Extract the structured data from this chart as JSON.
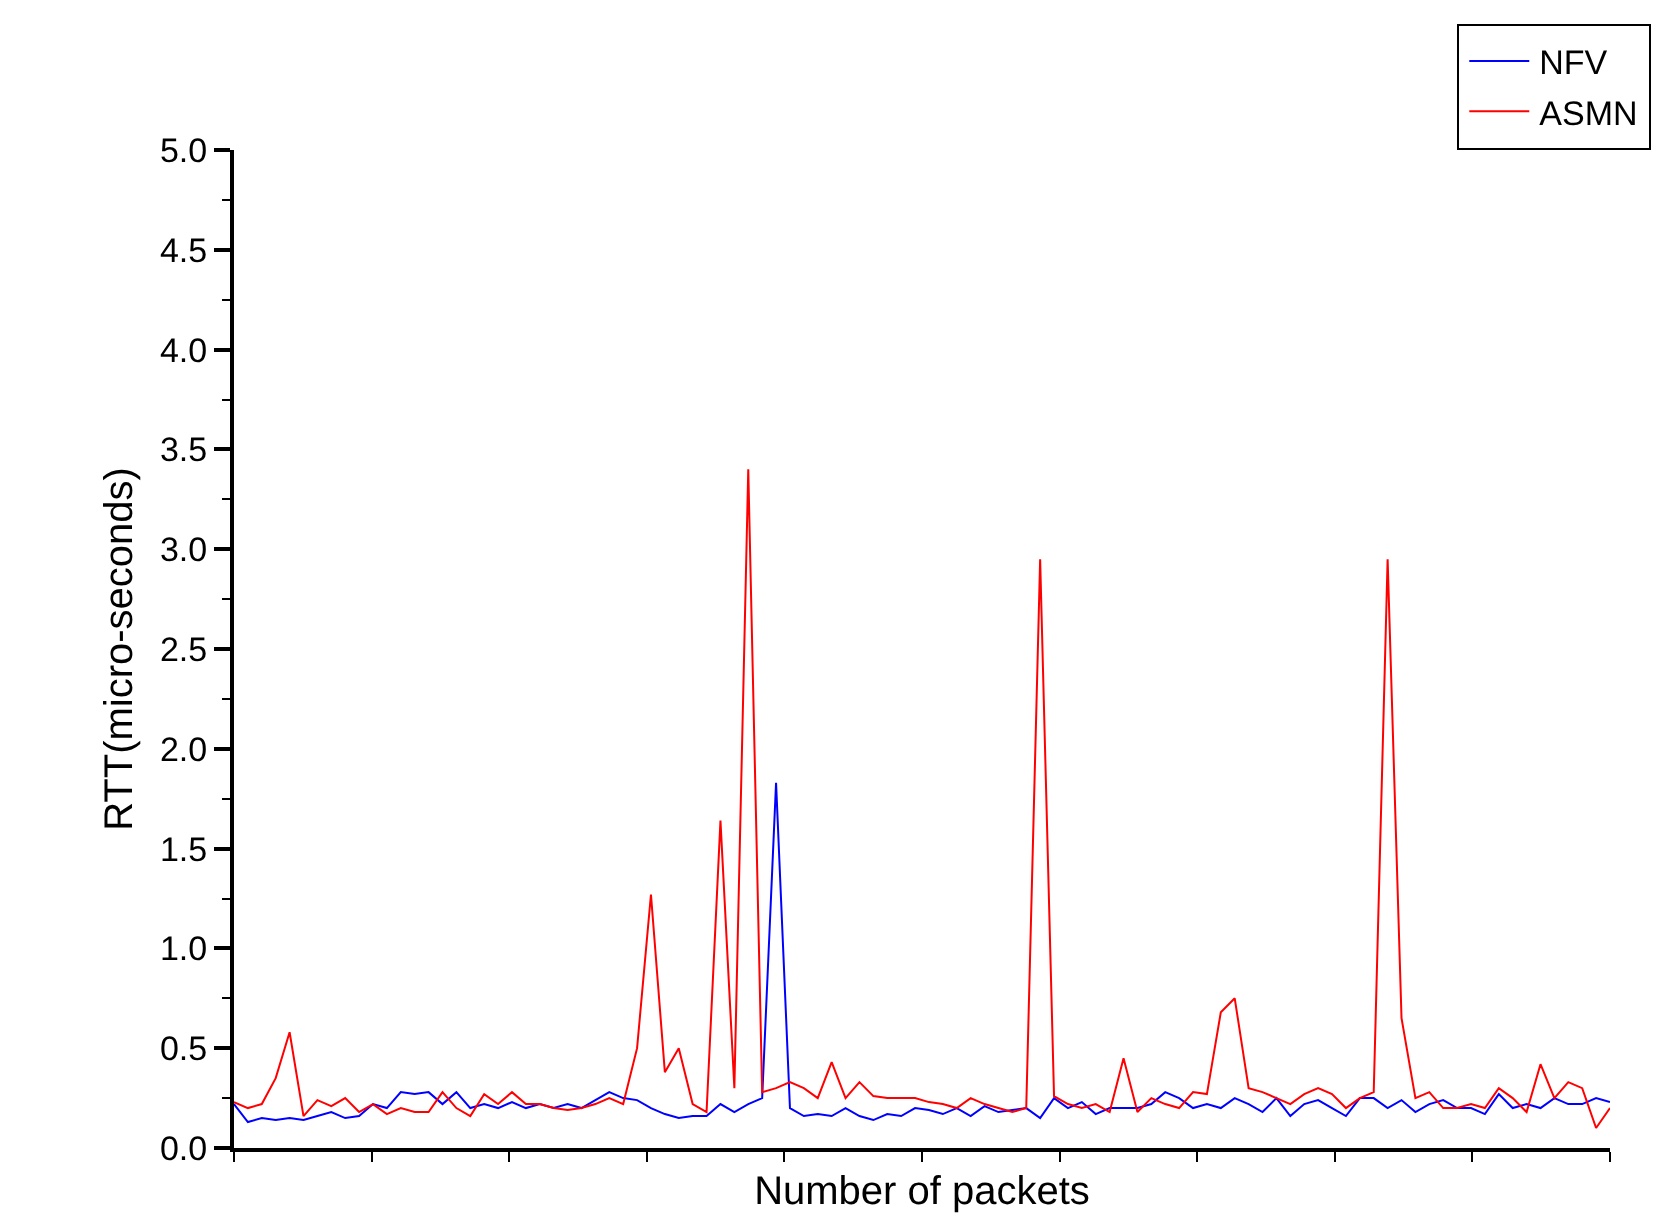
{
  "chart_data": {
    "type": "line",
    "xlabel": "Number of packets",
    "ylabel": "RTT(micro-seconds)",
    "categories": [
      null,
      null,
      null,
      null,
      null,
      null,
      null,
      null,
      null,
      null,
      null,
      null,
      null,
      null,
      null,
      null,
      null,
      null,
      null,
      null,
      null,
      null,
      null,
      null,
      null,
      null,
      null,
      null,
      null,
      null,
      null,
      null,
      null,
      null,
      null,
      null,
      null,
      null,
      null,
      null,
      null,
      null,
      null,
      null,
      null,
      null,
      null,
      null,
      null,
      null,
      null,
      null,
      null,
      null,
      null,
      null,
      null,
      null,
      null,
      null,
      null,
      null,
      null,
      null,
      null,
      null,
      null,
      null,
      null,
      null,
      null,
      null,
      null,
      null,
      null,
      null,
      null,
      null,
      null,
      null,
      null,
      null,
      null,
      null,
      null,
      null,
      null,
      null,
      null,
      null,
      null,
      null,
      null,
      null,
      null,
      null,
      null,
      null,
      null,
      null
    ],
    "series": [
      {
        "name": "NFV",
        "color": "#0000ff",
        "values": [
          0.22,
          0.13,
          0.15,
          0.14,
          0.15,
          0.14,
          0.16,
          0.18,
          0.15,
          0.16,
          0.22,
          0.2,
          0.28,
          0.27,
          0.28,
          0.22,
          0.28,
          0.2,
          0.22,
          0.2,
          0.23,
          0.2,
          0.22,
          0.2,
          0.22,
          0.2,
          0.24,
          0.28,
          0.25,
          0.24,
          0.2,
          0.17,
          0.15,
          0.16,
          0.16,
          0.22,
          0.18,
          0.22,
          0.25,
          1.83,
          0.2,
          0.16,
          0.17,
          0.16,
          0.2,
          0.16,
          0.14,
          0.17,
          0.16,
          0.2,
          0.19,
          0.17,
          0.2,
          0.16,
          0.21,
          0.18,
          0.19,
          0.2,
          0.15,
          0.25,
          0.2,
          0.23,
          0.17,
          0.2,
          0.2,
          0.2,
          0.22,
          0.28,
          0.25,
          0.2,
          0.22,
          0.2,
          0.25,
          0.22,
          0.18,
          0.25,
          0.16,
          0.22,
          0.24,
          0.2,
          0.16,
          0.25,
          0.25,
          0.2,
          0.24,
          0.18,
          0.22,
          0.24,
          0.2,
          0.2,
          0.17,
          0.27,
          0.2,
          0.22,
          0.2,
          0.25,
          0.22,
          0.22,
          0.25,
          0.23
        ]
      },
      {
        "name": "ASMN",
        "color": "#ff0000",
        "values": [
          0.23,
          0.2,
          0.22,
          0.35,
          0.58,
          0.16,
          0.24,
          0.21,
          0.25,
          0.18,
          0.22,
          0.17,
          0.2,
          0.18,
          0.18,
          0.28,
          0.2,
          0.16,
          0.27,
          0.22,
          0.28,
          0.22,
          0.22,
          0.2,
          0.19,
          0.2,
          0.22,
          0.25,
          0.22,
          0.5,
          1.27,
          0.38,
          0.5,
          0.22,
          0.18,
          1.64,
          0.3,
          3.4,
          0.28,
          0.3,
          0.33,
          0.3,
          0.25,
          0.43,
          0.25,
          0.33,
          0.26,
          0.25,
          0.25,
          0.25,
          0.23,
          0.22,
          0.2,
          0.25,
          0.22,
          0.2,
          0.18,
          0.2,
          2.95,
          0.26,
          0.22,
          0.2,
          0.22,
          0.18,
          0.45,
          0.18,
          0.25,
          0.22,
          0.2,
          0.28,
          0.27,
          0.68,
          0.75,
          0.3,
          0.28,
          0.25,
          0.22,
          0.27,
          0.3,
          0.27,
          0.2,
          0.25,
          0.28,
          2.95,
          0.65,
          0.25,
          0.28,
          0.2,
          0.2,
          0.22,
          0.2,
          0.3,
          0.25,
          0.18,
          0.42,
          0.25,
          0.33,
          0.3,
          0.1,
          0.2
        ]
      }
    ],
    "ylim": [
      0,
      5
    ],
    "yticks": [
      {
        "value": 0,
        "label": "0.0"
      },
      {
        "value": 0.5,
        "label": "0.5"
      },
      {
        "value": 1,
        "label": "1.0"
      },
      {
        "value": 1.5,
        "label": "1.5"
      },
      {
        "value": 2,
        "label": "2.0"
      },
      {
        "value": 2.5,
        "label": "2.5"
      },
      {
        "value": 3,
        "label": "3.0"
      },
      {
        "value": 3.5,
        "label": "3.5"
      },
      {
        "value": 4,
        "label": "4.0"
      },
      {
        "value": 4.5,
        "label": "4.5"
      },
      {
        "value": 5,
        "label": "5.0"
      }
    ],
    "tick_labels": "y",
    "legend": "top right",
    "marker": "none",
    "line_style": "solid"
  }
}
